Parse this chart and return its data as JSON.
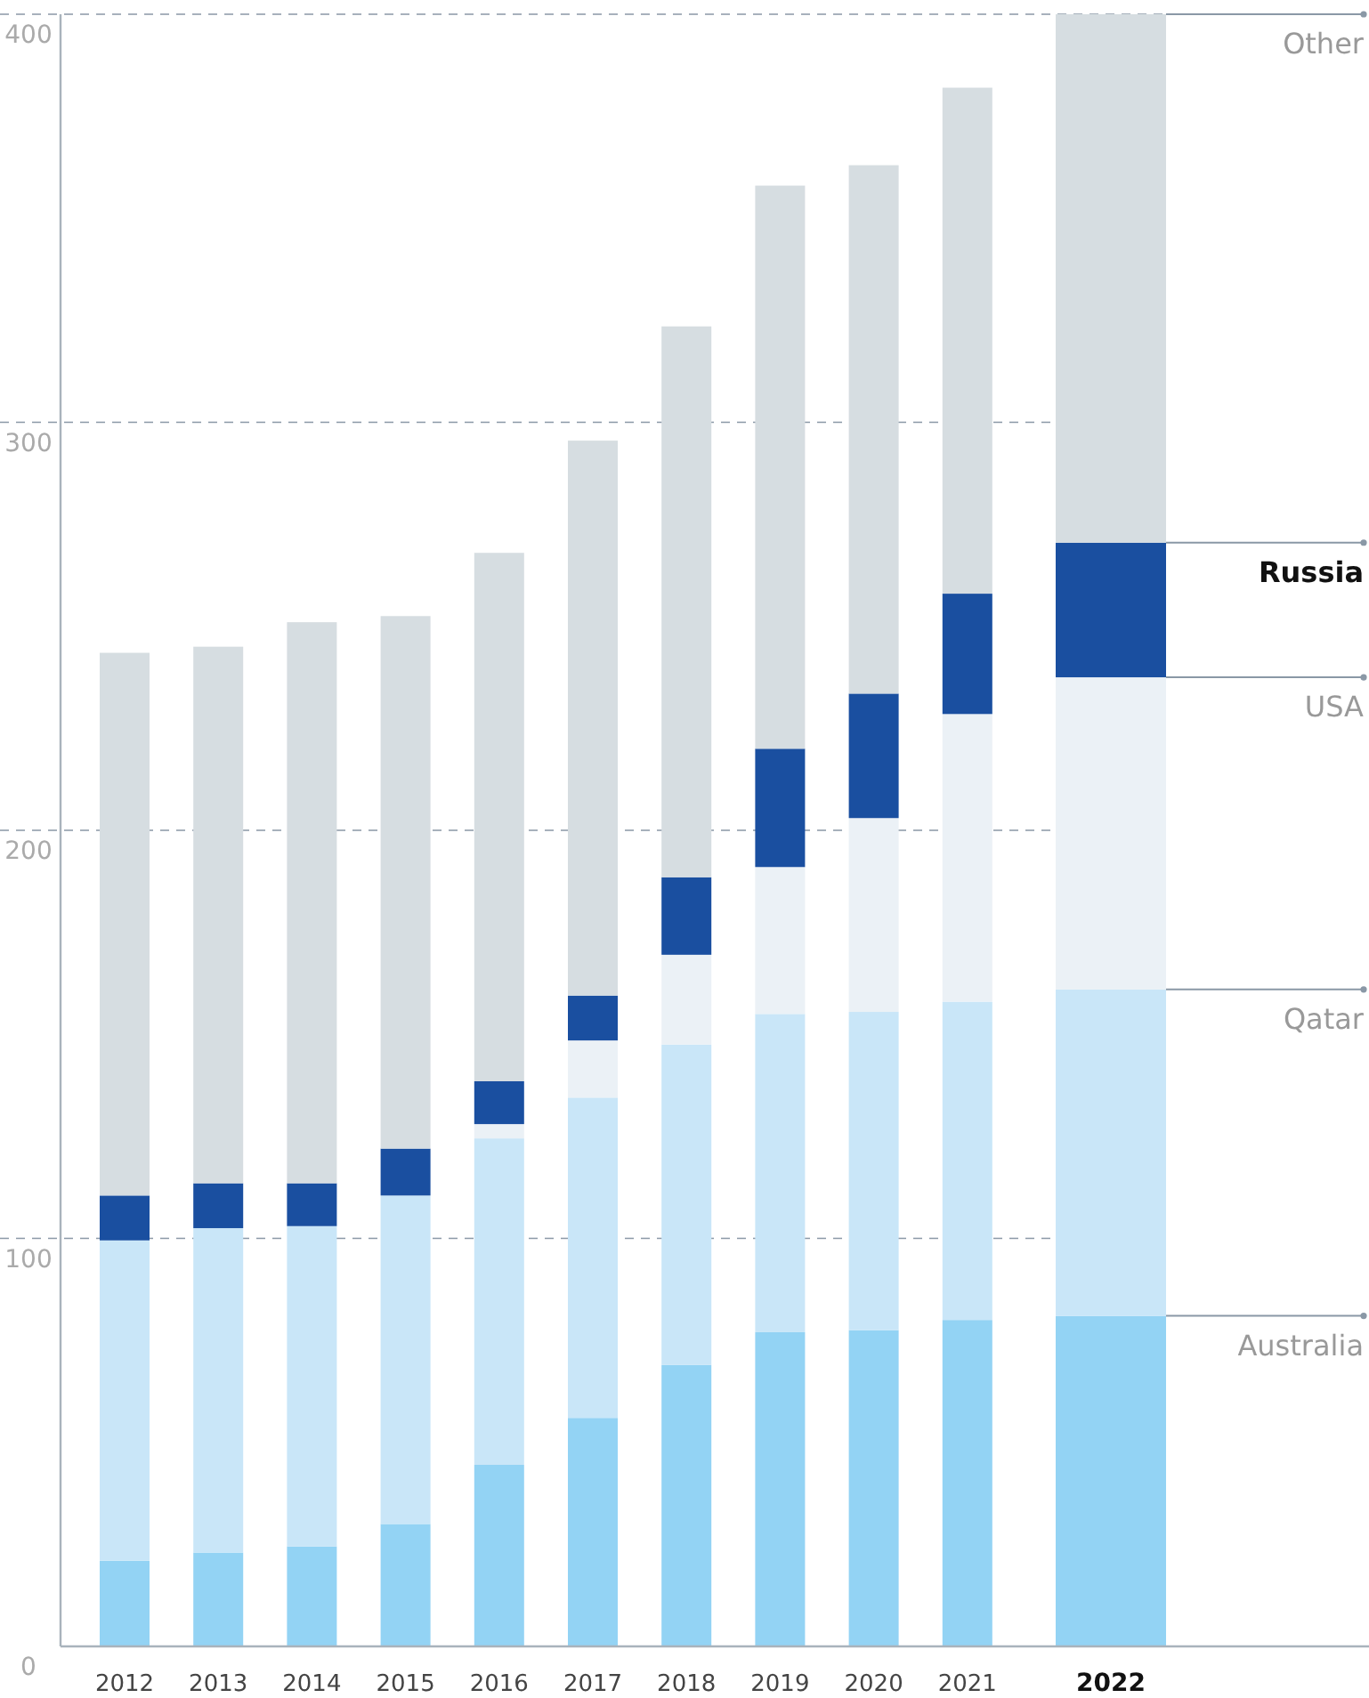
{
  "chart_data": {
    "type": "bar",
    "stacked": true,
    "categories": [
      "2012",
      "2013",
      "2014",
      "2015",
      "2016",
      "2017",
      "2018",
      "2019",
      "2020",
      "2021",
      "2022"
    ],
    "series": [
      {
        "name": "Australia",
        "color": "#93d3f4",
        "values": [
          21,
          23,
          24.5,
          30,
          44.5,
          56,
          69,
          77,
          77.5,
          80,
          81
        ]
      },
      {
        "name": "Qatar",
        "color": "#c9e6f8",
        "values": [
          78.5,
          79.5,
          78.5,
          80.5,
          80,
          78.5,
          78.5,
          78,
          78,
          78,
          80
        ]
      },
      {
        "name": "USA",
        "color": "#ebf1f6",
        "values": [
          0,
          0,
          0,
          0,
          3.5,
          14,
          22,
          36,
          47.5,
          70.5,
          76.5
        ]
      },
      {
        "name": "Russia",
        "color": "#1a4fa0",
        "values": [
          11,
          11,
          10.5,
          11.5,
          10.5,
          11,
          19,
          29,
          30.5,
          29.5,
          33
        ]
      },
      {
        "name": "Other",
        "color": "#d6dde1",
        "values": [
          133,
          131.5,
          137.5,
          130.5,
          129.5,
          136,
          135,
          138,
          129.5,
          124,
          129.5
        ]
      }
    ],
    "ylim": [
      0,
      400
    ],
    "yticks": [
      0,
      100,
      200,
      300,
      400
    ],
    "grid": "y",
    "legend": "right"
  }
}
